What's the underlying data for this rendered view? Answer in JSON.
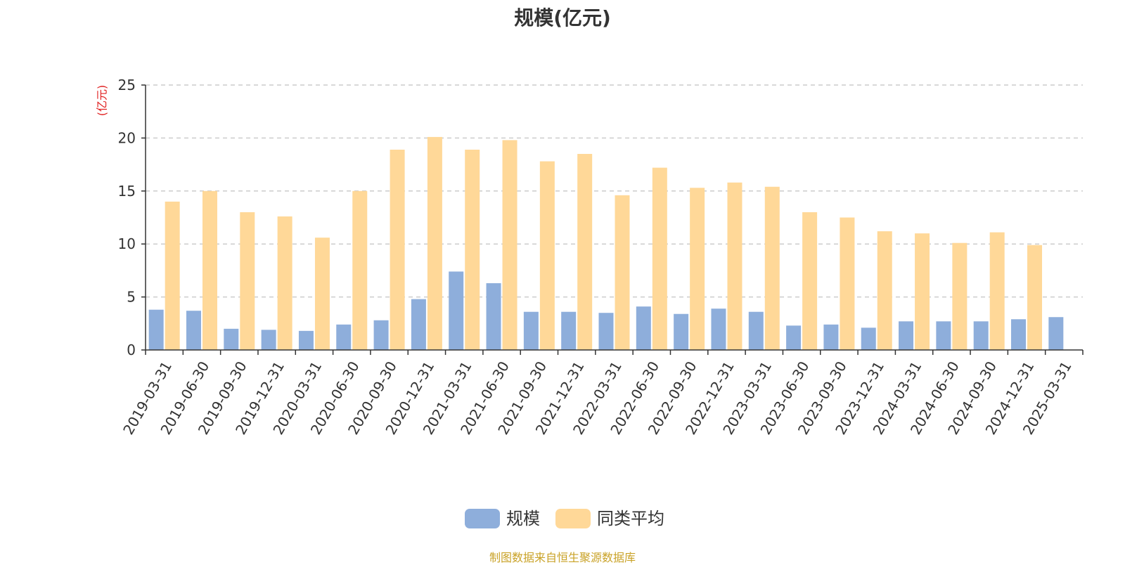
{
  "chart_data": {
    "type": "bar",
    "title": "规模(亿元)",
    "ylabel": "(亿元)",
    "xlabel": "",
    "ylim": [
      0,
      25
    ],
    "yticks": [
      0,
      5,
      10,
      15,
      20,
      25
    ],
    "grid": true,
    "legend_position": "bottom",
    "categories": [
      "2019-03-31",
      "2019-06-30",
      "2019-09-30",
      "2019-12-31",
      "2020-03-31",
      "2020-06-30",
      "2020-09-30",
      "2020-12-31",
      "2021-03-31",
      "2021-06-30",
      "2021-09-30",
      "2021-12-31",
      "2022-03-31",
      "2022-06-30",
      "2022-09-30",
      "2022-12-31",
      "2023-03-31",
      "2023-06-30",
      "2023-09-30",
      "2023-12-31",
      "2024-03-31",
      "2024-06-30",
      "2024-09-30",
      "2024-12-31",
      "2025-03-31"
    ],
    "series": [
      {
        "name": "规模",
        "color": "#8eaedb",
        "values": [
          3.8,
          3.7,
          2.0,
          1.9,
          1.8,
          2.4,
          2.8,
          4.8,
          7.4,
          6.3,
          3.6,
          3.6,
          3.5,
          4.1,
          3.4,
          3.9,
          3.6,
          2.3,
          2.4,
          2.1,
          2.7,
          2.7,
          2.7,
          2.9,
          3.1
        ]
      },
      {
        "name": "同类平均",
        "color": "#ffd898",
        "values": [
          14.0,
          15.0,
          13.0,
          12.6,
          10.6,
          15.0,
          18.9,
          20.1,
          18.9,
          19.8,
          17.8,
          18.5,
          14.6,
          17.2,
          15.3,
          15.8,
          15.4,
          13.0,
          12.5,
          11.2,
          11.0,
          10.1,
          11.1,
          9.9,
          null
        ]
      }
    ]
  },
  "footer": {
    "source": "制图数据来自恒生聚源数据库"
  }
}
